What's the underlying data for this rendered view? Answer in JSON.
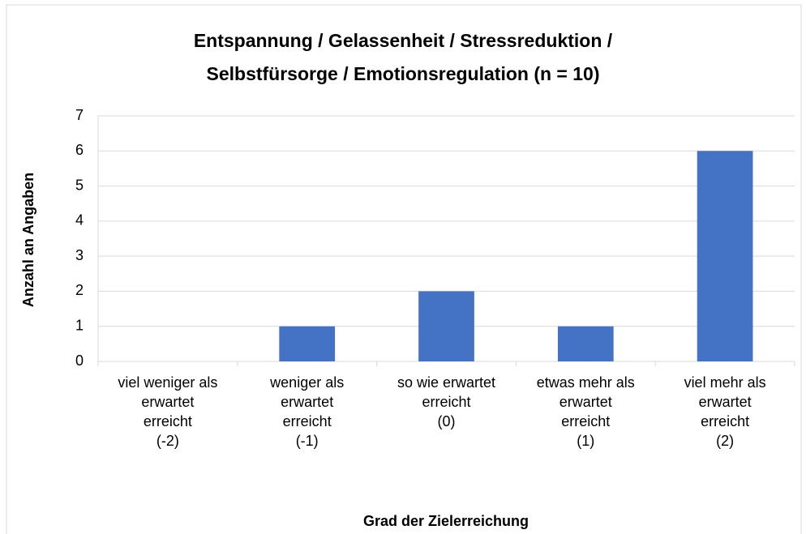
{
  "chart_data": {
    "type": "bar",
    "title": [
      "Entspannung / Gelassenheit / Stressreduktion /",
      "Selbstfürsorge / Emotionsregulation (n = 10)"
    ],
    "categories": [
      "viel weniger als\nerwartet\nerreicht\n(-2)",
      "weniger als\nerwartet\nerreicht\n(-1)",
      "so wie erwartet\nerreicht\n(0)",
      "etwas mehr als\nerwartet\nerreicht\n(1)",
      "viel mehr als\nerwartet\nerreicht\n(2)"
    ],
    "values": [
      0,
      1,
      2,
      1,
      6
    ],
    "color": "#4472c4",
    "ylim": [
      0,
      7
    ],
    "yticks": [
      0,
      1,
      2,
      3,
      4,
      5,
      6,
      7
    ],
    "grid": true,
    "ylabel": "Anzahl an Angaben",
    "xlabel": "Grad der Zielerreichung"
  }
}
